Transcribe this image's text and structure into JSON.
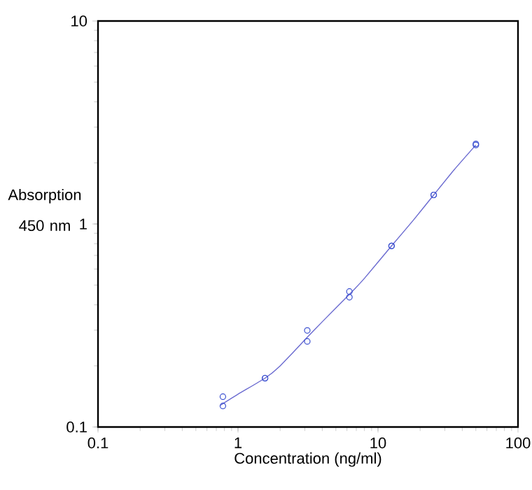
{
  "chart_data": {
    "type": "scatter",
    "xlabel": "Concentration (ng/ml)",
    "ylabel": "Absorption 450 nm",
    "log": "xy",
    "xlim": [
      0.1,
      100
    ],
    "ylim": [
      0.1,
      10
    ],
    "xticks": [
      0.1,
      1,
      10,
      100
    ],
    "yticks": [
      0.1,
      1,
      10
    ],
    "grid": false,
    "series": [
      {
        "marker": "circle",
        "color": "#3a4fd0",
        "x": [
          0.78,
          0.78,
          1.56,
          1.56,
          3.125,
          3.125,
          6.25,
          6.25,
          12.5,
          12.5,
          25,
          25,
          50,
          50
        ],
        "values": [
          0.141,
          0.127,
          0.174,
          0.174,
          0.299,
          0.264,
          0.465,
          0.436,
          0.78,
          0.78,
          1.39,
          1.39,
          2.48,
          2.45
        ]
      },
      {
        "type": "line",
        "marker": "none",
        "color": "#6a6ad0",
        "x": [
          0.75,
          1,
          1.56,
          2,
          3.1,
          4,
          6.25,
          8,
          12.5,
          18,
          25,
          35,
          50
        ],
        "values": [
          0.128,
          0.145,
          0.174,
          0.2,
          0.275,
          0.33,
          0.45,
          0.54,
          0.78,
          1.05,
          1.39,
          1.85,
          2.45
        ]
      }
    ]
  }
}
